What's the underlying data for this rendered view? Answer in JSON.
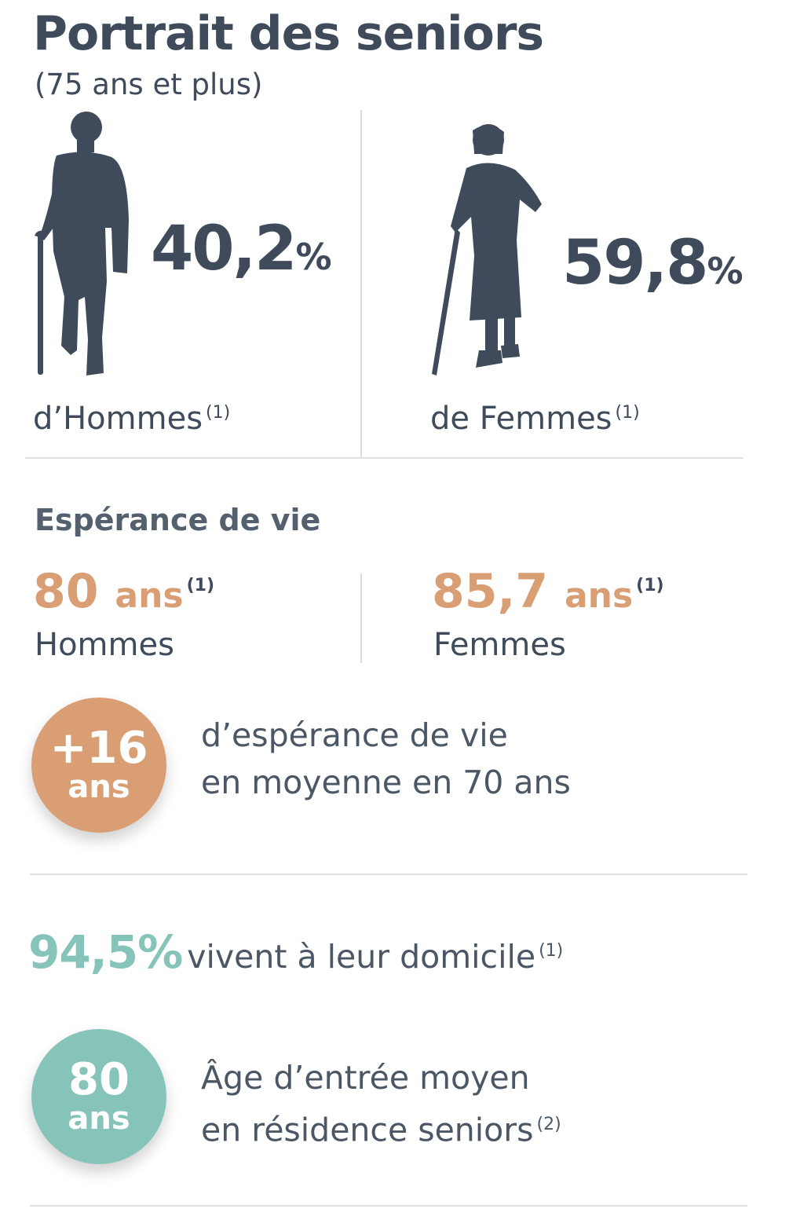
{
  "header": {
    "title": "Portrait des seniors",
    "subtitle": "(75 ans et plus)"
  },
  "gender": {
    "men": {
      "value": "40,2",
      "unit": "%",
      "label": "d’Hommes",
      "note": "(1)"
    },
    "women": {
      "value": "59,8",
      "unit": "%",
      "label": "de Femmes",
      "note": "(1)"
    }
  },
  "life_expectancy": {
    "heading": "Espérance de vie",
    "men": {
      "value": "80",
      "unit": "ans",
      "note": "(1)",
      "label": "Hommes"
    },
    "women": {
      "value": "85,7",
      "unit": "ans",
      "note": "(1)",
      "label": "Femmes"
    },
    "gain": {
      "value": "+16",
      "unit": "ans",
      "line1": "d’espérance de vie",
      "line2": "en moyenne en 70 ans"
    }
  },
  "home": {
    "value": "94,5%",
    "text": "vivent à leur domicile",
    "note": "(1)"
  },
  "residence": {
    "value": "80",
    "unit": "ans",
    "line1": "Âge d’entrée moyen",
    "line2": "en résidence seniors",
    "note": "(2)"
  },
  "colors": {
    "slate": "#3f4b5b",
    "orange": "#d99e73",
    "teal": "#86c4ba"
  },
  "icons": {
    "men": "elderly-man-cane-icon",
    "women": "elderly-woman-cane-icon"
  }
}
